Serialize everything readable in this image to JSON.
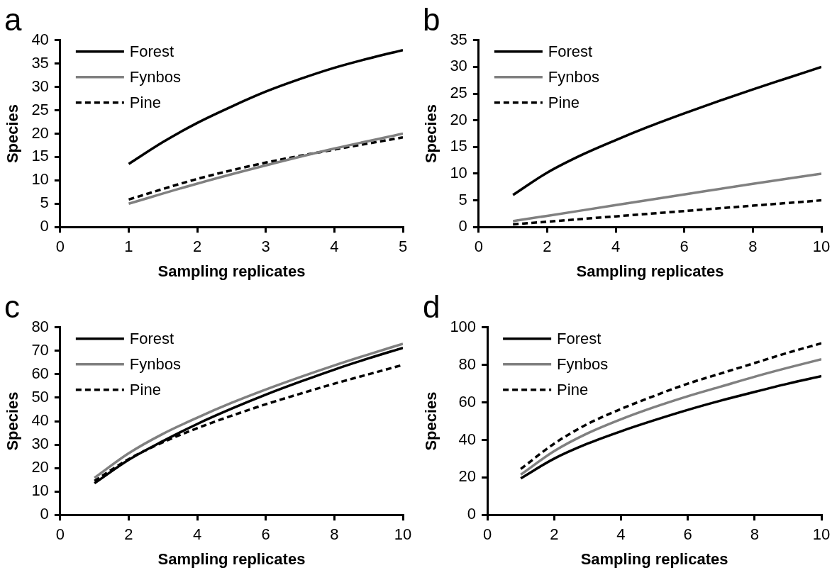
{
  "chart_data": [
    {
      "type": "line",
      "title": "a",
      "xlabel": "Sampling replicates",
      "ylabel": "Species",
      "xlim": [
        0,
        5
      ],
      "xticks": [
        0,
        1,
        2,
        3,
        4,
        5
      ],
      "ylim": [
        0,
        40
      ],
      "yticks": [
        0,
        5,
        10,
        15,
        20,
        25,
        30,
        35,
        40
      ],
      "grid": false,
      "legend": "top left",
      "marker": "none",
      "series": [
        {
          "name": "Forest",
          "color": "#000000",
          "line_style": "solid",
          "x": [
            1,
            1.5,
            2,
            2.5,
            3,
            3.5,
            4,
            4.5,
            5
          ],
          "values": [
            13.5,
            18.2,
            22.3,
            25.8,
            29,
            31.7,
            34.1,
            36.1,
            37.9
          ]
        },
        {
          "name": "Fynbos",
          "color": "#808080",
          "line_style": "solid",
          "x": [
            1,
            2,
            3,
            4,
            5
          ],
          "values": [
            5,
            9.3,
            13.2,
            16.8,
            20
          ]
        },
        {
          "name": "Pine",
          "color": "#000000",
          "line_style": "dashed",
          "x": [
            1,
            2,
            3,
            4,
            5
          ],
          "values": [
            5.9,
            10.3,
            13.8,
            16.6,
            19.2
          ]
        }
      ]
    },
    {
      "type": "line",
      "title": "b",
      "xlabel": "Sampling replicates",
      "ylabel": "Species",
      "xlim": [
        0,
        10
      ],
      "xticks": [
        0,
        2,
        4,
        6,
        8,
        10
      ],
      "ylim": [
        0,
        35
      ],
      "yticks": [
        0,
        5,
        10,
        15,
        20,
        25,
        30,
        35
      ],
      "grid": false,
      "legend": "top left",
      "marker": "none",
      "series": [
        {
          "name": "Forest",
          "color": "#000000",
          "line_style": "solid",
          "x": [
            1,
            2,
            3,
            4,
            5,
            6,
            7,
            8,
            9,
            10
          ],
          "values": [
            6,
            10.2,
            13.5,
            16.3,
            18.9,
            21.3,
            23.6,
            25.8,
            27.9,
            30
          ]
        },
        {
          "name": "Fynbos",
          "color": "#808080",
          "line_style": "solid",
          "x": [
            1,
            2,
            4,
            6,
            8,
            10
          ],
          "values": [
            1.1,
            2.1,
            4.1,
            6.1,
            8.1,
            10
          ]
        },
        {
          "name": "Pine",
          "color": "#000000",
          "line_style": "dashed",
          "x": [
            1,
            2,
            4,
            6,
            8,
            10
          ],
          "values": [
            0.5,
            1,
            2,
            3,
            4,
            5
          ]
        }
      ]
    },
    {
      "type": "line",
      "title": "c",
      "xlabel": "Sampling replicates",
      "ylabel": "Species",
      "xlim": [
        0,
        10
      ],
      "xticks": [
        0,
        2,
        4,
        6,
        8,
        10
      ],
      "ylim": [
        0,
        80
      ],
      "yticks": [
        0,
        10,
        20,
        30,
        40,
        50,
        60,
        70,
        80
      ],
      "grid": false,
      "legend": "top left",
      "marker": "none",
      "series": [
        {
          "name": "Forest",
          "color": "#000000",
          "line_style": "solid",
          "x": [
            1,
            2,
            3,
            4,
            5,
            6,
            7,
            8,
            9,
            10
          ],
          "values": [
            13.5,
            23.5,
            31.5,
            38.8,
            45.3,
            51.3,
            56.8,
            62,
            66.8,
            71.3
          ]
        },
        {
          "name": "Fynbos",
          "color": "#808080",
          "line_style": "solid",
          "x": [
            1,
            2,
            3,
            4,
            5,
            6,
            7,
            8,
            9,
            10
          ],
          "values": [
            15.8,
            26.3,
            34.6,
            41.5,
            47.8,
            53.5,
            58.8,
            63.8,
            68.5,
            73
          ]
        },
        {
          "name": "Pine",
          "color": "#000000",
          "line_style": "dashed",
          "x": [
            1,
            2,
            3,
            4,
            5,
            6,
            7,
            8,
            9,
            10
          ],
          "values": [
            14.5,
            23.8,
            31,
            37,
            42.3,
            47.2,
            51.7,
            56,
            60,
            64
          ]
        }
      ]
    },
    {
      "type": "line",
      "title": "d",
      "xlabel": "Sampling replicates",
      "ylabel": "Species",
      "xlim": [
        0,
        10
      ],
      "xticks": [
        0,
        2,
        4,
        6,
        8,
        10
      ],
      "ylim": [
        0,
        100
      ],
      "yticks": [
        0,
        20,
        40,
        60,
        80,
        100
      ],
      "grid": false,
      "legend": "top left",
      "marker": "none",
      "series": [
        {
          "name": "Forest",
          "color": "#000000",
          "line_style": "solid",
          "x": [
            1,
            2,
            3,
            4,
            5,
            6,
            7,
            8,
            9,
            10
          ],
          "values": [
            19.5,
            30,
            38,
            44.6,
            50.5,
            56,
            61,
            65.6,
            70,
            74
          ]
        },
        {
          "name": "Fynbos",
          "color": "#808080",
          "line_style": "solid",
          "x": [
            1,
            2,
            3,
            4,
            5,
            6,
            7,
            8,
            9,
            10
          ],
          "values": [
            21.5,
            34,
            43.5,
            51,
            57.5,
            63.3,
            68.5,
            73.7,
            78.5,
            83
          ]
        },
        {
          "name": "Pine",
          "color": "#000000",
          "line_style": "dashed",
          "x": [
            1,
            2,
            3,
            4,
            5,
            6,
            7,
            8,
            9,
            10
          ],
          "values": [
            24.5,
            38,
            48.5,
            56.5,
            63.5,
            70,
            75.5,
            81,
            86.5,
            91.5
          ]
        }
      ]
    }
  ]
}
